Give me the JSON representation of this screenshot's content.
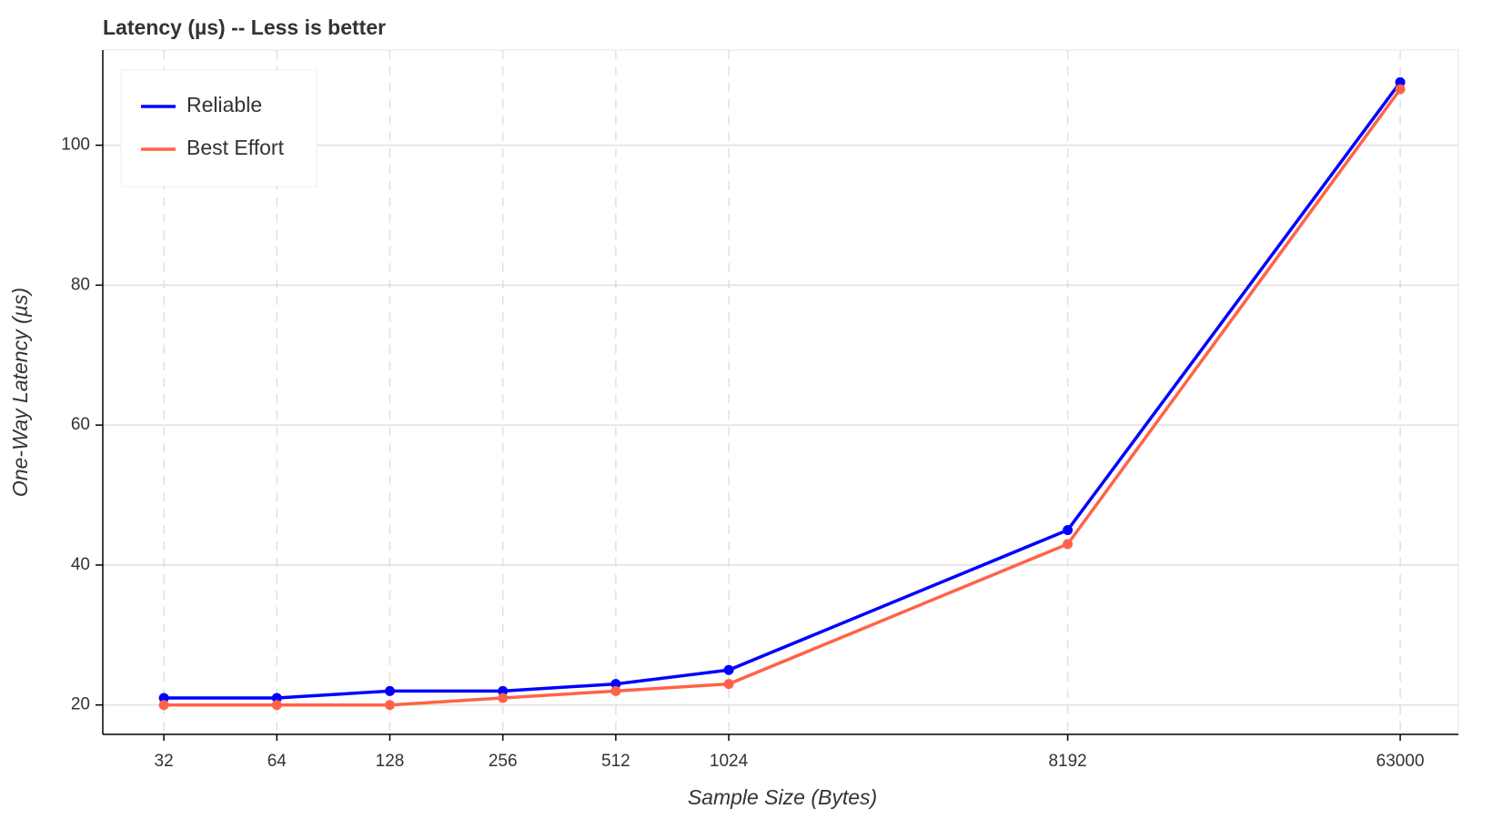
{
  "chart_data": {
    "type": "line",
    "title": "Latency (µs) -- Less is better",
    "x_label": "Sample Size (Bytes)",
    "y_label": "One-Way Latency (µs)",
    "x": [
      32,
      64,
      128,
      256,
      512,
      1024,
      8192,
      63000
    ],
    "series": [
      {
        "name": "Reliable",
        "color": "#0000ff",
        "values": [
          21,
          21,
          22,
          22,
          23,
          25,
          45,
          109
        ]
      },
      {
        "name": "Best Effort",
        "color": "#ff6347",
        "values": [
          20,
          20,
          20,
          21,
          22,
          23,
          43,
          108
        ]
      }
    ],
    "xscale": "log",
    "xlim": [
      22,
      90000
    ],
    "xticks": [
      32,
      64,
      128,
      256,
      512,
      1024,
      8192,
      63000
    ],
    "ylim": [
      15.8,
      113.6
    ],
    "yticks": [
      20,
      40,
      60,
      80,
      100
    ],
    "grid": true,
    "legend": "upper left"
  }
}
